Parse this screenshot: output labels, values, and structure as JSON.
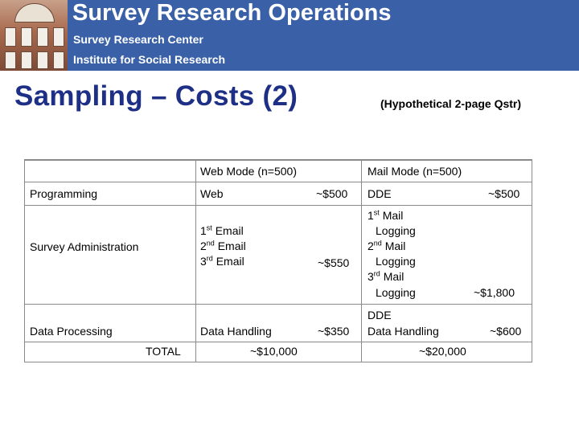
{
  "header": {
    "title": "Survey Research Operations",
    "line1": "Survey Research Center",
    "line2": "Institute for Social Research"
  },
  "slide": {
    "title": "Sampling – Costs (2)",
    "subtitle": "(Hypothetical 2-page Qstr)"
  },
  "table": {
    "headers": {
      "web": "Web Mode (n=500)",
      "mail": "Mail Mode (n=500)"
    },
    "programming": {
      "label": "Programming",
      "web_item": "Web",
      "web_cost": "~$500",
      "mail_item": "DDE",
      "mail_cost": "~$500"
    },
    "administration": {
      "label": "Survey Administration",
      "web_items": [
        {
          "num": "1",
          "sup": "st",
          "text": " Email"
        },
        {
          "num": "2",
          "sup": "nd",
          "text": " Email"
        },
        {
          "num": "3",
          "sup": "rd",
          "text": " Email"
        }
      ],
      "web_cost": "~$550",
      "mail_items": [
        {
          "num": "1",
          "sup": "st",
          "text": " Mail"
        },
        {
          "num": "",
          "sup": "",
          "text": "Logging"
        },
        {
          "num": "2",
          "sup": "nd",
          "text": " Mail"
        },
        {
          "num": "",
          "sup": "",
          "text": "Logging"
        },
        {
          "num": "3",
          "sup": "rd",
          "text": " Mail"
        },
        {
          "num": "",
          "sup": "",
          "text": "Logging"
        }
      ],
      "mail_cost": "~$1,800"
    },
    "processing": {
      "label": "Data Processing",
      "web_item": "Data Handling",
      "web_cost": "~$350",
      "mail_item_1": "DDE",
      "mail_item_2": "Data Handling",
      "mail_cost": "~$600"
    },
    "total": {
      "label": "TOTAL",
      "web": "~$10,000",
      "mail": "~$20,000"
    }
  }
}
